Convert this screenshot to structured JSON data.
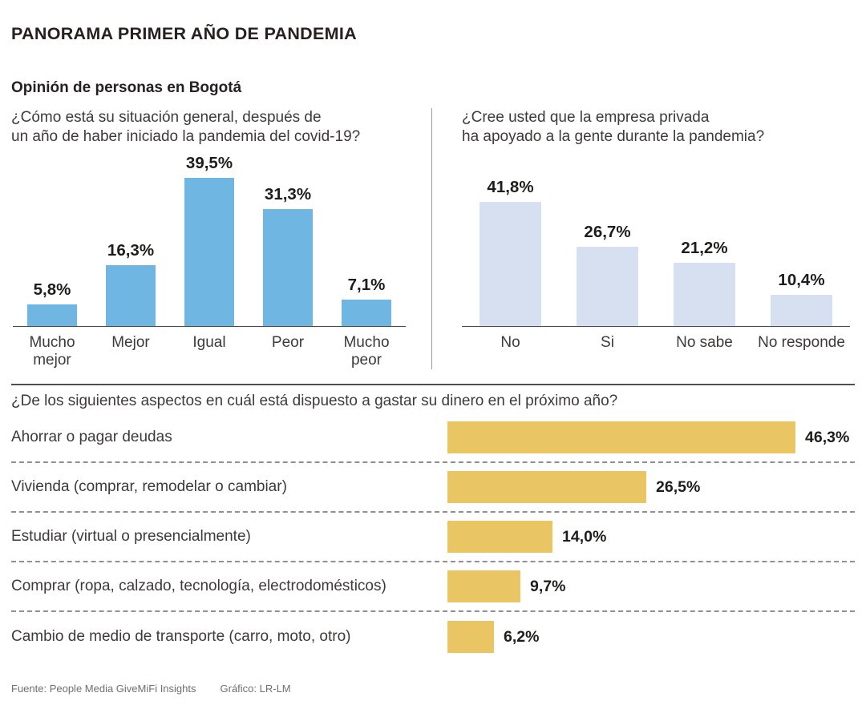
{
  "header": {
    "title": "PANORAMA PRIMER AÑO DE PANDEMIA",
    "subtitle": "Opinión de personas en Bogotá"
  },
  "colors": {
    "blue_bar": "#6FB6E2",
    "pale_blue_bar": "#D6E0F0",
    "yellow_bar": "#EAC563",
    "axis": "#4A4A4A",
    "divider": "#9B9B9B",
    "dashed_separator": "#909090",
    "text_dark": "#272020",
    "text_body": "#3E3A39",
    "footer_text": "#6F6F6F"
  },
  "chart_data": [
    {
      "id": "situacion-general",
      "type": "bar",
      "orientation": "vertical",
      "question": "¿Cómo está su situación general, después de\nun año de haber iniciado la pandemia del covid-19?",
      "categories": [
        "Mucho mejor",
        "Mejor",
        "Igual",
        "Peor",
        "Mucho peor"
      ],
      "values": [
        5.8,
        16.3,
        39.5,
        31.3,
        7.1
      ],
      "value_labels": [
        "5,8%",
        "16,3%",
        "39,5%",
        "31,3%",
        "7,1%"
      ],
      "bar_color": "#6FB6E2",
      "ylim": [
        0,
        45
      ],
      "grid": false,
      "legend": "none"
    },
    {
      "id": "empresa-privada",
      "type": "bar",
      "orientation": "vertical",
      "question": "¿Cree usted que la empresa privada\nha apoyado a la gente durante la pandemia?",
      "categories": [
        "No",
        "Si",
        "No sabe",
        "No responde"
      ],
      "values": [
        41.8,
        26.7,
        21.2,
        10.4
      ],
      "value_labels": [
        "41,8%",
        "26,7%",
        "21,2%",
        "10,4%"
      ],
      "bar_color": "#D6E0F0",
      "ylim": [
        0,
        55
      ],
      "grid": false,
      "legend": "none"
    },
    {
      "id": "gasto-proximo-ano",
      "type": "bar",
      "orientation": "horizontal",
      "question": "¿De los siguientes aspectos en cuál está dispuesto a gastar su dinero en el próximo año?",
      "categories": [
        "Ahorrar o pagar deudas",
        "Vivienda (comprar, remodelar o cambiar)",
        "Estudiar (virtual o presencialmente)",
        "Comprar (ropa, calzado, tecnología, electrodomésticos)",
        "Cambio de medio de transporte (carro, moto, otro)"
      ],
      "values": [
        46.3,
        26.5,
        14.0,
        9.7,
        6.2
      ],
      "value_labels": [
        "46,3%",
        "26,5%",
        "14,0%",
        "9,7%",
        "6,2%"
      ],
      "bar_color": "#EAC563",
      "xlim": [
        0,
        50
      ],
      "grid": false,
      "legend": "none"
    }
  ],
  "footer": {
    "source": "Fuente: People Media GiveMiFi Insights",
    "credit": "Gráfico: LR-LM"
  }
}
